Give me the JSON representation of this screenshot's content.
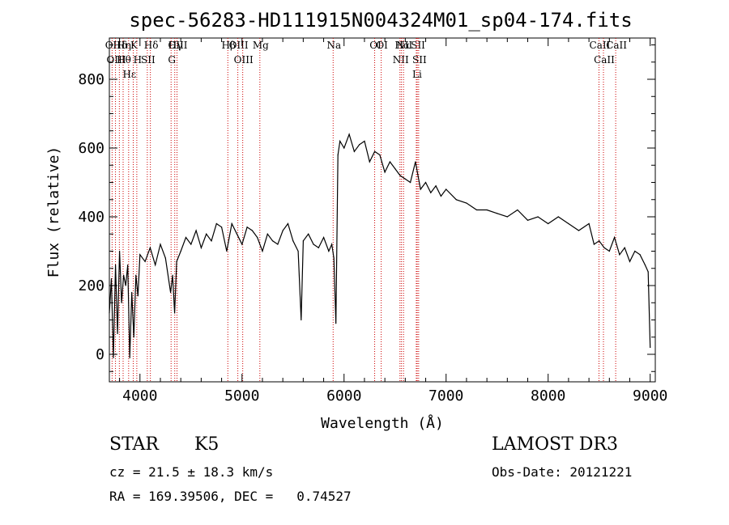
{
  "chart_data": {
    "type": "line",
    "title": "spec-56283-HD111915N004324M01_sp04-174.fits",
    "xlabel": "Wavelength (Å)",
    "ylabel": "Flux (relative)",
    "xlim": [
      3700,
      9050
    ],
    "ylim": [
      -80,
      920
    ],
    "xticks": [
      4000,
      5000,
      6000,
      7000,
      8000,
      9000
    ],
    "yticks": [
      0,
      200,
      400,
      600,
      800
    ],
    "grid": false,
    "line_color": "#000000",
    "marker_color": "#cc0000",
    "series": [
      {
        "x": [
          3700,
          3720,
          3740,
          3760,
          3780,
          3800,
          3820,
          3840,
          3860,
          3880,
          3900,
          3920,
          3940,
          3960,
          3980,
          4000,
          4050,
          4100,
          4150,
          4200,
          4250,
          4300,
          4320,
          4340,
          4360,
          4400,
          4450,
          4500,
          4550,
          4600,
          4650,
          4700,
          4750,
          4800,
          4850,
          4900,
          4950,
          5000,
          5050,
          5100,
          5150,
          5200,
          5250,
          5300,
          5350,
          5400,
          5450,
          5500,
          5550,
          5580,
          5600,
          5650,
          5700,
          5750,
          5800,
          5850,
          5880,
          5900,
          5920,
          5940,
          5960,
          6000,
          6050,
          6100,
          6150,
          6200,
          6250,
          6300,
          6350,
          6400,
          6450,
          6500,
          6550,
          6600,
          6650,
          6700,
          6750,
          6800,
          6850,
          6900,
          6950,
          7000,
          7100,
          7200,
          7300,
          7400,
          7500,
          7600,
          7700,
          7800,
          7900,
          8000,
          8100,
          8200,
          8300,
          8400,
          8450,
          8500,
          8550,
          8600,
          8650,
          8700,
          8750,
          8800,
          8850,
          8900,
          8950,
          8980,
          9000
        ],
        "values": [
          120,
          220,
          -10,
          260,
          60,
          300,
          150,
          230,
          200,
          260,
          -10,
          180,
          50,
          230,
          170,
          290,
          270,
          310,
          260,
          320,
          280,
          180,
          230,
          120,
          270,
          300,
          340,
          320,
          360,
          310,
          350,
          330,
          380,
          370,
          300,
          380,
          350,
          320,
          370,
          360,
          340,
          300,
          350,
          330,
          320,
          360,
          380,
          330,
          300,
          100,
          330,
          350,
          320,
          310,
          340,
          300,
          320,
          280,
          90,
          580,
          620,
          600,
          640,
          590,
          610,
          620,
          560,
          590,
          580,
          530,
          560,
          540,
          520,
          510,
          500,
          560,
          480,
          500,
          470,
          490,
          460,
          480,
          450,
          440,
          420,
          420,
          410,
          400,
          420,
          390,
          400,
          380,
          400,
          380,
          360,
          380,
          320,
          330,
          310,
          300,
          340,
          290,
          310,
          270,
          300,
          290,
          260,
          240,
          20
        ]
      }
    ],
    "line_markers": [
      {
        "name": "Hδ",
        "wavelength": 3798
      },
      {
        "name": "OII",
        "wavelength": 3727
      },
      {
        "name": "OIII",
        "wavelength": 3760
      },
      {
        "name": "Hθ",
        "wavelength": 3835
      },
      {
        "name": "Hε",
        "wavelength": 3889
      },
      {
        "name": "K",
        "wavelength": 3934
      },
      {
        "name": "H",
        "wavelength": 3969
      },
      {
        "name": "Hη",
        "wavelength": 3835
      },
      {
        "name": "Hδ",
        "wavelength": 4102
      },
      {
        "name": "SII",
        "wavelength": 4072
      },
      {
        "name": "OIII",
        "wavelength": 4363
      },
      {
        "name": "Hγ",
        "wavelength": 4341
      },
      {
        "name": "G",
        "wavelength": 4305
      },
      {
        "name": "Hβ",
        "wavelength": 4861
      },
      {
        "name": "OIII",
        "wavelength": 4959
      },
      {
        "name": "OIII",
        "wavelength": 5007
      },
      {
        "name": "Mg",
        "wavelength": 5175
      },
      {
        "name": "Na",
        "wavelength": 5893
      },
      {
        "name": "OI",
        "wavelength": 6300
      },
      {
        "name": "OI",
        "wavelength": 6364
      },
      {
        "name": "Hα",
        "wavelength": 6563
      },
      {
        "name": "NII",
        "wavelength": 6548
      },
      {
        "name": "NII",
        "wavelength": 6583
      },
      {
        "name": "SII",
        "wavelength": 6717
      },
      {
        "name": "SII",
        "wavelength": 6731
      },
      {
        "name": "Li",
        "wavelength": 6708
      },
      {
        "name": "CaII",
        "wavelength": 8498
      },
      {
        "name": "CaII",
        "wavelength": 8542
      },
      {
        "name": "CaII",
        "wavelength": 8662
      }
    ]
  },
  "info": {
    "class_label": "STAR",
    "subclass": "K5",
    "survey": "LAMOST DR3",
    "cz": "cz = 21.5 ± 18.3 km/s",
    "obs_date": "Obs-Date: 20121221",
    "coords": "RA = 169.39506, DEC =   0.74527"
  }
}
